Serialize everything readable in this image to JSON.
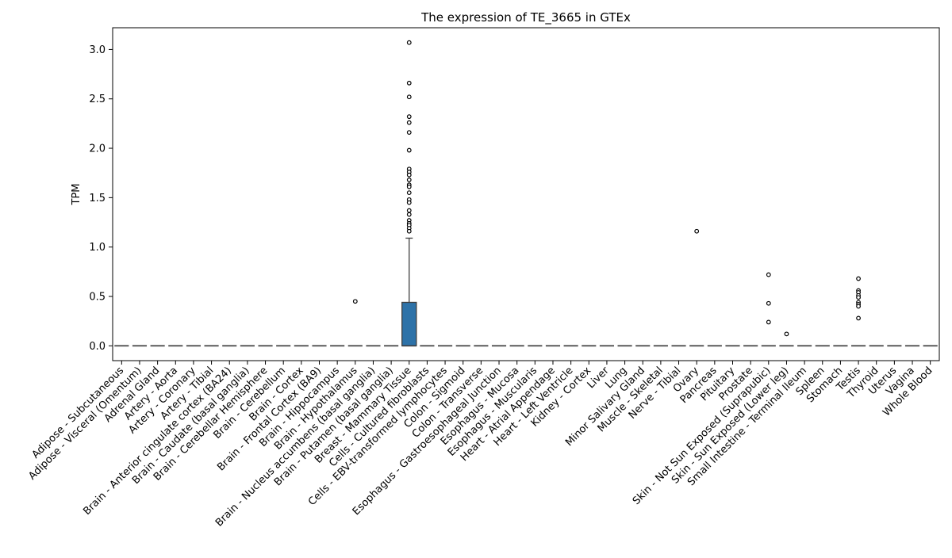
{
  "chart_data": {
    "type": "box",
    "title": "The expression of TE_3665 in GTEx",
    "xlabel": "",
    "ylabel": "TPM",
    "ylim": [
      -0.15,
      3.22
    ],
    "yticks": [
      0.0,
      0.5,
      1.0,
      1.5,
      2.0,
      2.5,
      3.0
    ],
    "ytick_labels": [
      "0.0",
      "0.5",
      "1.0",
      "1.5",
      "2.0",
      "2.5",
      "3.0"
    ],
    "grid": false,
    "legend": "none",
    "colors": {
      "box_fill": "#2d72a8",
      "box_edge": "#3f3f3f",
      "median": "#3f3f3f",
      "flat": "#5a5a5a",
      "outlier_edge": "#000000"
    },
    "categories": [
      "Adipose - Subcutaneous",
      "Adipose - Visceral (Omentum)",
      "Adrenal Gland",
      "Artery - Aorta",
      "Artery - Coronary",
      "Artery - Tibial",
      "Brain - Anterior cingulate cortex (BA24)",
      "Brain - Caudate (basal ganglia)",
      "Brain - Cerebellar Hemisphere",
      "Brain - Cerebellum",
      "Brain - Cortex",
      "Brain - Frontal Cortex (BA9)",
      "Brain - Hippocampus",
      "Brain - Hypothalamus",
      "Brain - Nucleus accumbens (basal ganglia)",
      "Brain - Putamen (basal ganglia)",
      "Breast - Mammary Tissue",
      "Cells - Cultured fibroblasts",
      "Cells - EBV-transformed lymphocytes",
      "Colon - Sigmoid",
      "Colon - Transverse",
      "Esophagus - Gastroesophageal Junction",
      "Esophagus - Mucosa",
      "Esophagus - Muscularis",
      "Heart - Atrial Appendage",
      "Heart - Left Ventricle",
      "Kidney - Cortex",
      "Liver",
      "Lung",
      "Minor Salivary Gland",
      "Muscle - Skeletal",
      "Nerve - Tibial",
      "Ovary",
      "Pancreas",
      "Pituitary",
      "Prostate",
      "Skin - Not Sun Exposed (Suprapubic)",
      "Skin - Sun Exposed (Lower leg)",
      "Small Intestine - Terminal Ileum",
      "Spleen",
      "Stomach",
      "Testis",
      "Thyroid",
      "Uterus",
      "Vagina",
      "Whole Blood"
    ],
    "boxes": [
      {
        "category": "Breast - Mammary Tissue",
        "q1": 0.0,
        "median": 0.0,
        "q3": 0.44,
        "whisker_low": 0.0,
        "whisker_high": 1.09
      }
    ],
    "outliers": [
      {
        "category": "Brain - Hypothalamus",
        "values": [
          0.45
        ]
      },
      {
        "category": "Breast - Mammary Tissue",
        "values": [
          3.07,
          2.66,
          2.52,
          2.32,
          2.26,
          2.16,
          1.98,
          1.79,
          1.76,
          1.73,
          1.68,
          1.63,
          1.61,
          1.55,
          1.48,
          1.45,
          1.37,
          1.33,
          1.27,
          1.24,
          1.22,
          1.19,
          1.16
        ]
      },
      {
        "category": "Ovary",
        "values": [
          1.16
        ]
      },
      {
        "category": "Skin - Not Sun Exposed (Suprapubic)",
        "values": [
          0.72,
          0.43,
          0.24
        ]
      },
      {
        "category": "Skin - Sun Exposed (Lower leg)",
        "values": [
          0.12
        ]
      },
      {
        "category": "Testis",
        "values": [
          0.68,
          0.56,
          0.54,
          0.51,
          0.49,
          0.44,
          0.42,
          0.4,
          0.28
        ]
      }
    ]
  }
}
